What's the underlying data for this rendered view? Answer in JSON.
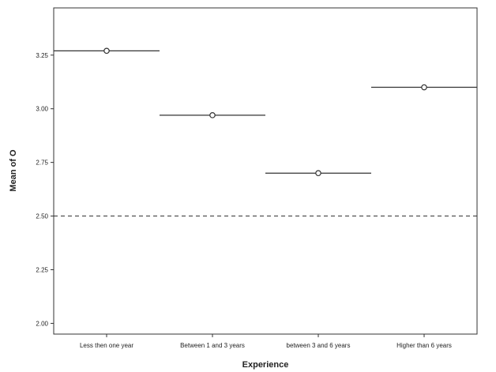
{
  "chart_data": {
    "type": "scatter",
    "xlabel": "Experience",
    "ylabel": "Mean of O",
    "categories": [
      "Less then one year",
      "Between 1 and 3 years",
      "between 3 and 6 years",
      "Higher than 6 years"
    ],
    "values": [
      3.27,
      2.97,
      2.7,
      3.1
    ],
    "yticks": [
      2.0,
      2.25,
      2.5,
      2.75,
      3.0,
      3.25
    ],
    "ytick_labels": [
      "2.00",
      "2.25",
      "2.50",
      "2.75",
      "3.00",
      "3.25"
    ],
    "ylim": [
      1.95,
      3.47
    ],
    "reference_line": 2.5,
    "grid": false,
    "colors": {
      "marker": "#333333",
      "line": "#333333",
      "axis": "#333333",
      "reference": "#333333"
    }
  }
}
